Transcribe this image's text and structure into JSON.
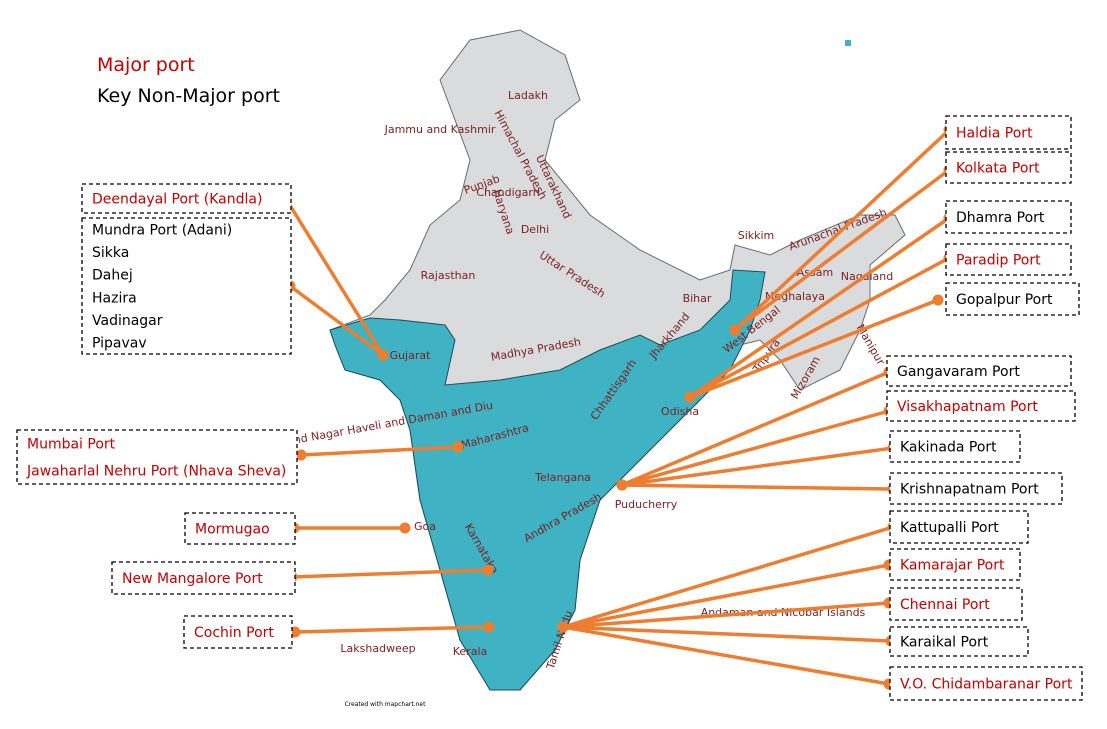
{
  "legend": {
    "major": {
      "text": "Major port",
      "color": "#c00000"
    },
    "non_major": {
      "text": "Key Non-Major port",
      "color": "#000000"
    }
  },
  "ports": [
    {
      "lines": [
        "Deendayal Port (Kandla)"
      ],
      "color": "#c00000"
    },
    {
      "lines": [
        "Mundra Port (Adani)",
        "Sikka",
        "Dahej",
        "Hazira",
        "Vadinagar",
        "Pipavav"
      ],
      "color": "#000000"
    },
    {
      "lines": [
        "Mumbai Port",
        "Jawaharlal Nehru Port (Nhava Sheva)"
      ],
      "color": "#c00000"
    },
    {
      "lines": [
        "Mormugao"
      ],
      "color": "#c00000"
    },
    {
      "lines": [
        "New Mangalore Port"
      ],
      "color": "#c00000"
    },
    {
      "lines": [
        "Cochin Port"
      ],
      "color": "#c00000"
    },
    {
      "lines": [
        "Haldia Port"
      ],
      "color": "#c00000"
    },
    {
      "lines": [
        "Kolkata Port"
      ],
      "color": "#c00000"
    },
    {
      "lines": [
        "Dhamra Port"
      ],
      "color": "#000000"
    },
    {
      "lines": [
        "Paradip Port"
      ],
      "color": "#c00000"
    },
    {
      "lines": [
        "Gopalpur Port"
      ],
      "color": "#000000"
    },
    {
      "lines": [
        "Gangavaram Port"
      ],
      "color": "#000000"
    },
    {
      "lines": [
        "Visakhapatnam Port"
      ],
      "color": "#c00000"
    },
    {
      "lines": [
        "Kakinada Port"
      ],
      "color": "#000000"
    },
    {
      "lines": [
        "Krishnapatnam Port"
      ],
      "color": "#000000"
    },
    {
      "lines": [
        "Kattupalli Port"
      ],
      "color": "#000000"
    },
    {
      "lines": [
        "Kamarajar Port"
      ],
      "color": "#c00000"
    },
    {
      "lines": [
        "Chennai Port"
      ],
      "color": "#c00000"
    },
    {
      "lines": [
        "Karaikal Port"
      ],
      "color": "#000000"
    },
    {
      "lines": [
        "V.O. Chidambaranar Port"
      ],
      "color": "#c00000"
    }
  ],
  "regions": [
    "Ladakh",
    "Jammu and Kashmir",
    "Himachal Pradesh",
    "Punjab",
    "Chandigarh",
    "Uttarakhand",
    "Haryana",
    "Delhi",
    "Rajasthan",
    "Uttar Pradesh",
    "Bihar",
    "Sikkim",
    "Arunachal Pradesh",
    "Assam",
    "Nagaland",
    "Meghalaya",
    "Manipur",
    "Mizoram",
    "Tripura",
    "West Bengal",
    "Jharkhand",
    "Gujarat",
    "Madhya Pradesh",
    "Chhattisgarh",
    "Odisha",
    "Dadra and Nagar Haveli and Daman and Diu",
    "Maharashtra",
    "Telangana",
    "Andhra Pradesh",
    "Puducherry",
    "Goa",
    "Karnataka",
    "Tamil Nadu",
    "Kerala",
    "Lakshadweep",
    "Andaman and Nicobar Islands"
  ],
  "credit": "Created with mapchart.net"
}
